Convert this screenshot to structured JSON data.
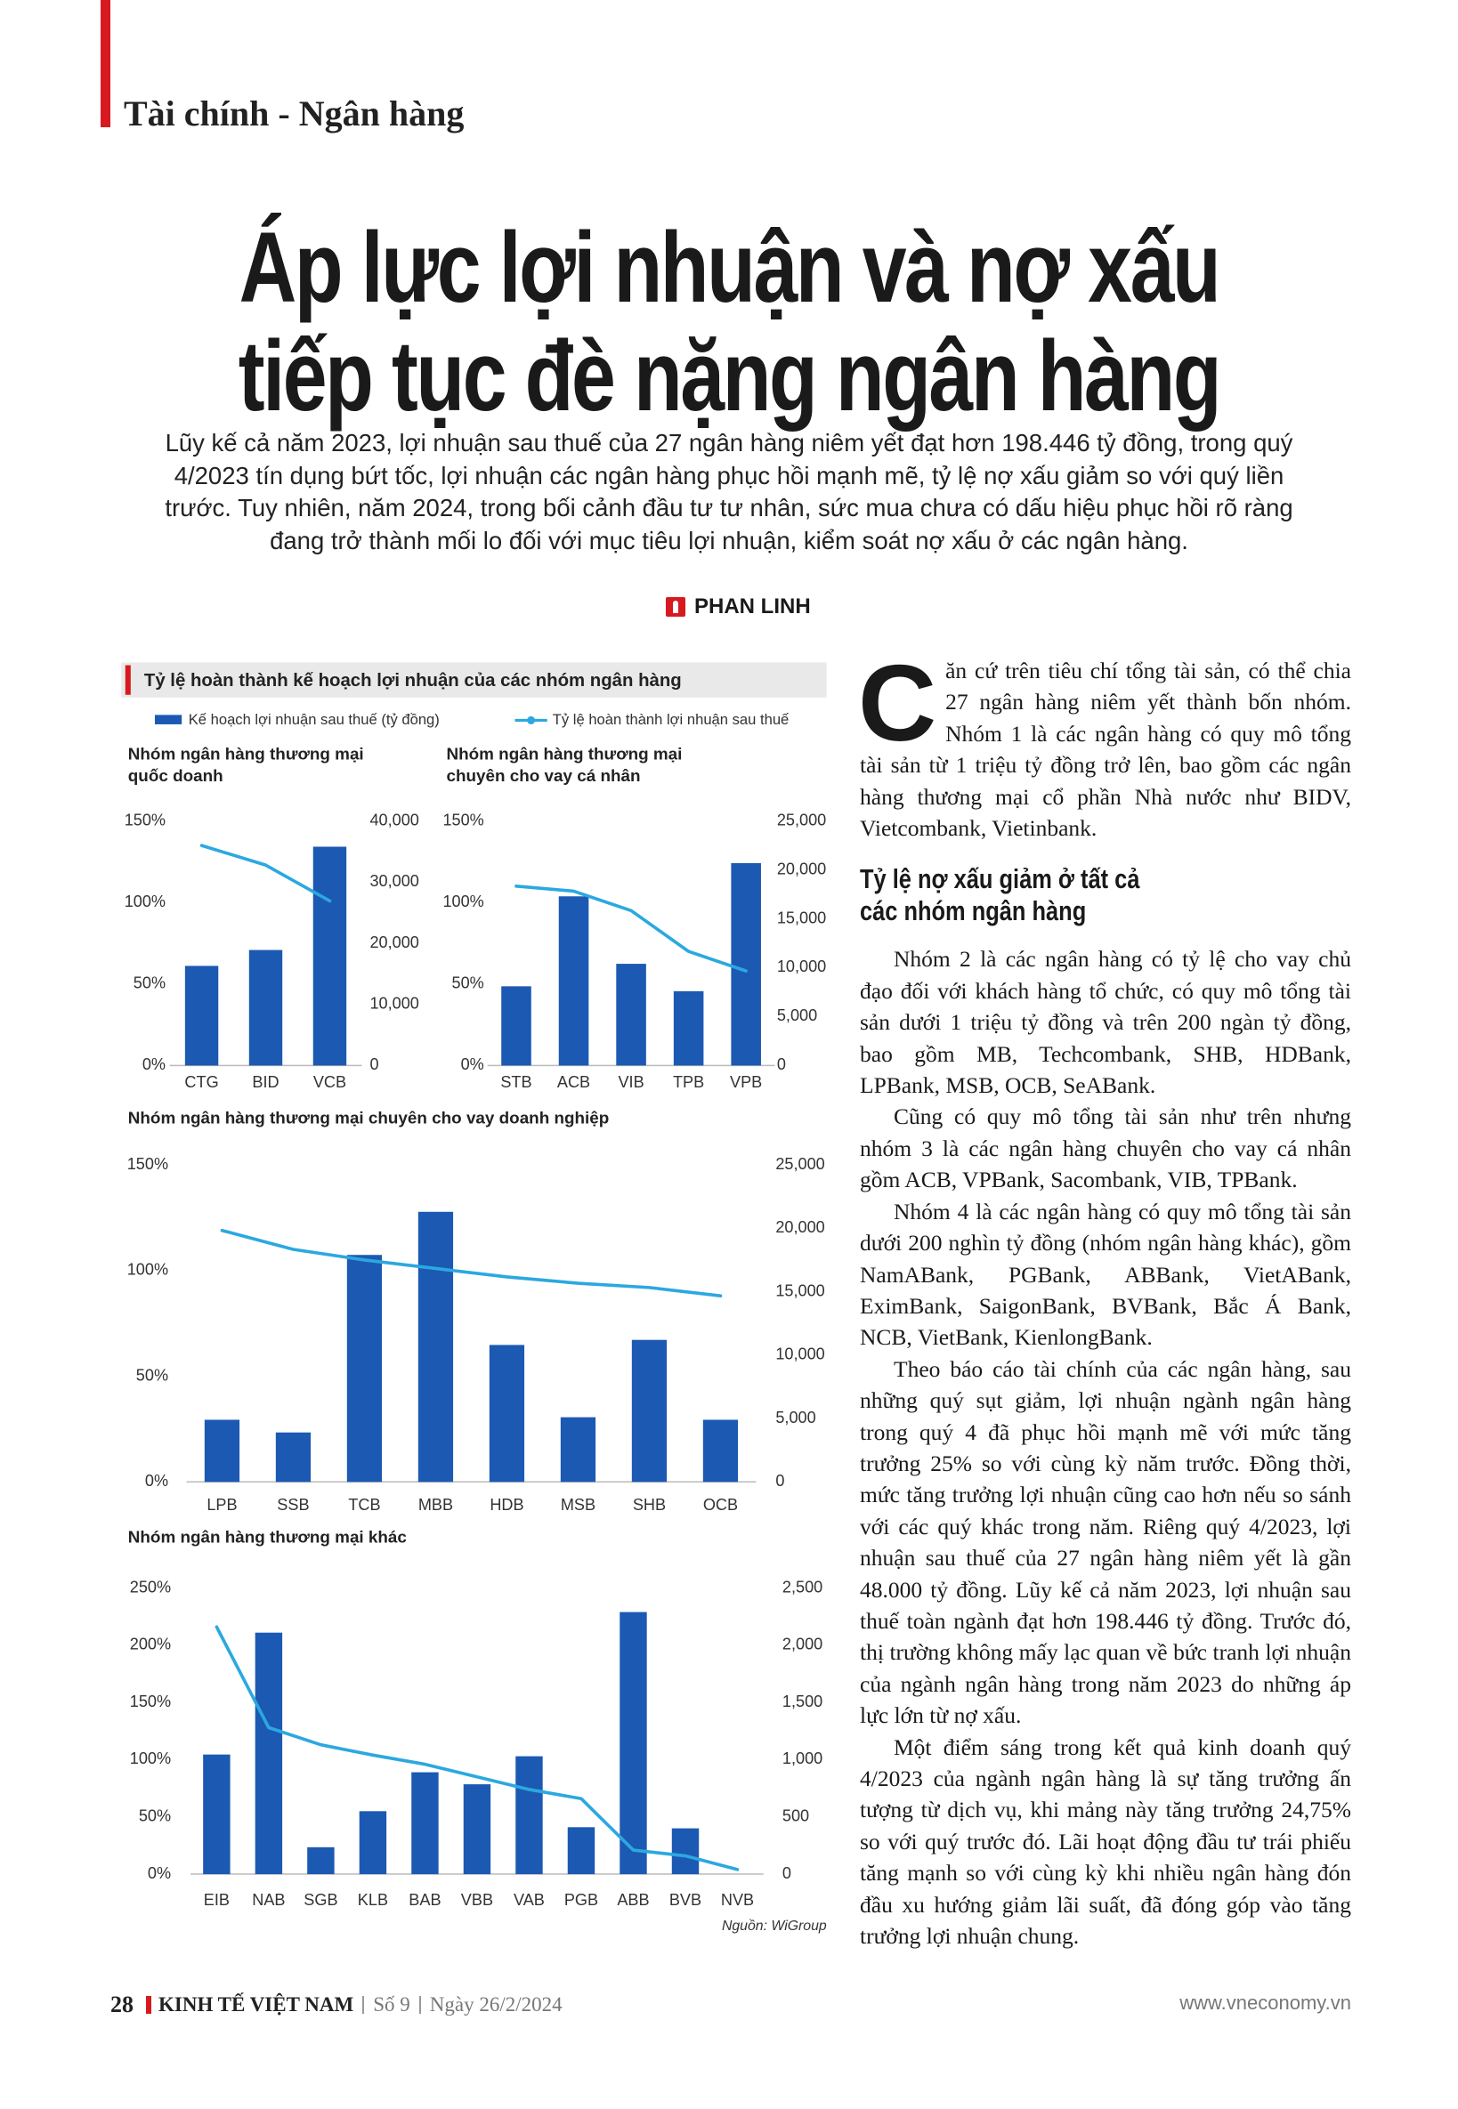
{
  "header": {
    "section": "Tài chính - Ngân hàng"
  },
  "title": [
    "Áp lực lợi nhuận và nợ xấu",
    "tiếp tục đè nặng ngân hàng"
  ],
  "lead": "Lũy kế cả năm 2023, lợi nhuận sau thuế của 27 ngân hàng niêm yết đạt hơn 198.446 tỷ đồng, trong quý 4/2023 tín dụng bứt tốc, lợi nhuận các ngân hàng phục hồi mạnh mẽ, tỷ lệ nợ xấu giảm so với quý liền trước. Tuy nhiên, năm 2024, trong bối cảnh đầu tư tư nhân, sức mua chưa có dấu hiệu phục hồi rõ ràng đang trở thành mối lo đối với mục tiêu lợi nhuận, kiểm soát nợ xấu ở các ngân hàng.",
  "byline": "PHAN LINH",
  "figure": {
    "title": "Tỷ lệ hoàn thành kế hoạch lợi nhuận của các nhóm ngân hàng",
    "legend": [
      {
        "name": "Kế hoạch lợi nhuận sau thuế (tỷ đồng)",
        "color": "#1c59b3"
      },
      {
        "name": "Tỷ lệ hoàn thành lợi nhuận sau thuế",
        "color": "#2ba8e0"
      }
    ],
    "source": "Nguồn: WiGroup",
    "charts": [
      {
        "type": "combo",
        "title": [
          "Nhóm ngân hàng thương mại",
          "quốc doanh"
        ],
        "categories": [
          "CTG",
          "BID",
          "VCB"
        ],
        "ylim": [
          0,
          150
        ],
        "yticks": [
          {
            "value": 0,
            "label": "0%"
          },
          {
            "value": 50,
            "label": "50%"
          },
          {
            "value": 100,
            "label": "100%"
          },
          {
            "value": 150,
            "label": "150%"
          }
        ],
        "y2lim": [
          0,
          40000
        ],
        "y2ticks": [
          0,
          {
            "value": 10000,
            "label": "10,000"
          },
          {
            "value": 20000,
            "label": "20,000"
          },
          {
            "value": 30000,
            "label": "30,000"
          },
          {
            "value": 40000,
            "label": "40,000"
          }
        ],
        "series": [
          {
            "axis": "y2",
            "values": [
              16300,
              18900,
              35800
            ]
          },
          {
            "values": [
              135,
              123,
              101
            ]
          }
        ]
      },
      {
        "type": "combo",
        "title": [
          "Nhóm ngân hàng thương mại",
          "chuyên cho vay cá nhân"
        ],
        "categories": [
          "STB",
          "ACB",
          "VIB",
          "TPB",
          "VPB"
        ],
        "ylim": [
          0,
          150
        ],
        "yticks": [
          {
            "value": 0,
            "label": "0%"
          },
          {
            "value": 50,
            "label": "50%"
          },
          {
            "value": 100,
            "label": "100%"
          },
          {
            "value": 150,
            "label": "150%"
          }
        ],
        "y2lim": [
          0,
          25000
        ],
        "y2ticks": [
          0,
          {
            "value": 5000,
            "label": "5,000"
          },
          {
            "value": 10000,
            "label": "10,000"
          },
          {
            "value": 15000,
            "label": "15,000"
          },
          {
            "value": 20000,
            "label": "20,000"
          },
          {
            "value": 25000,
            "label": "25,000"
          }
        ],
        "series": [
          {
            "axis": "y2",
            "values": [
              8100,
              17300,
              10400,
              7600,
              20700
            ]
          },
          {
            "values": [
              110,
              107,
              95,
              70,
              58
            ]
          }
        ]
      },
      {
        "type": "combo",
        "title": [
          "Nhóm ngân hàng thương mại chuyên cho vay doanh nghiệp"
        ],
        "categories": [
          "LPB",
          "SSB",
          "TCB",
          "MBB",
          "HDB",
          "MSB",
          "SHB",
          "OCB"
        ],
        "ylim": [
          0,
          150
        ],
        "yticks": [
          {
            "value": 0,
            "label": "0%"
          },
          {
            "value": 50,
            "label": "50%"
          },
          {
            "value": 100,
            "label": "100%"
          },
          {
            "value": 150,
            "label": "150%"
          }
        ],
        "y2lim": [
          0,
          25000
        ],
        "y2ticks": [
          0,
          {
            "value": 5000,
            "label": "5,000"
          },
          {
            "value": 10000,
            "label": "10,000"
          },
          {
            "value": 15000,
            "label": "15,000"
          },
          {
            "value": 20000,
            "label": "20,000"
          },
          {
            "value": 25000,
            "label": "25,000"
          }
        ],
        "series": [
          {
            "axis": "y2",
            "values": [
              4900,
              3900,
              17900,
              21300,
              10800,
              5100,
              11200,
              4900
            ]
          },
          {
            "values": [
              119,
              110,
              105,
              101,
              97,
              94,
              92,
              88
            ]
          }
        ]
      },
      {
        "type": "combo",
        "title": [
          "Nhóm ngân hàng thương mại khác"
        ],
        "categories": [
          "EIB",
          "NAB",
          "SGB",
          "KLB",
          "BAB",
          "VBB",
          "VAB",
          "PGB",
          "ABB",
          "BVB",
          "NVB"
        ],
        "ylim": [
          0,
          250
        ],
        "yticks": [
          {
            "value": 0,
            "label": "0%"
          },
          {
            "value": 50,
            "label": "50%"
          },
          {
            "value": 100,
            "label": "100%"
          },
          {
            "value": 150,
            "label": "150%"
          },
          {
            "value": 200,
            "label": "200%"
          },
          {
            "value": 250,
            "label": "250%"
          }
        ],
        "y2lim": [
          0,
          2500
        ],
        "y2ticks": [
          0,
          500,
          {
            "value": 1000,
            "label": "1,000"
          },
          {
            "value": 1500,
            "label": "1,500"
          },
          {
            "value": 2000,
            "label": "2,000"
          },
          {
            "value": 2500,
            "label": "2,500"
          }
        ],
        "series": [
          {
            "axis": "y2",
            "values": [
              1045,
              2110,
              235,
              550,
              890,
              785,
              1030,
              410,
              2290,
              400,
              null
            ]
          },
          {
            "values": [
              216,
              128,
              113,
              104,
              96,
              85,
              74,
              66,
              21,
              16,
              4
            ]
          }
        ]
      }
    ]
  },
  "article": {
    "dropcap": "C",
    "first": "ăn cứ trên tiêu chí tổng tài sản, có thể chia 27 ngân hàng niêm yết thành bốn nhóm. Nhóm 1 là các ngân hàng có quy mô tổng tài sản từ 1 triệu tỷ đồng trở lên, bao gồm các ngân hàng thương mại cổ phần Nhà nước như BIDV, Vietcombank, Vietinbank.",
    "subheading": [
      "Tỷ lệ nợ xấu giảm ở tất cả",
      "các nhóm ngân hàng"
    ],
    "paragraphs": [
      "Nhóm 2 là các ngân hàng có tỷ lệ cho vay chủ đạo đối với khách hàng tổ chức, có quy mô tổng tài sản dưới 1 triệu tỷ đồng và trên 200 ngàn tỷ đồng, bao gồm MB, Techcombank, SHB, HDBank, LPBank, MSB, OCB, SeABank.",
      "Cũng có quy mô tổng tài sản như trên nhưng nhóm 3 là các ngân hàng chuyên cho vay cá nhân gồm ACB, VPBank, Sacombank, VIB, TPBank.",
      "Nhóm 4 là các ngân hàng có quy mô tổng tài sản dưới 200 nghìn tỷ đồng (nhóm ngân hàng khác), gồm NamABank, PGBank, ABBank, VietABank, EximBank, SaigonBank, BVBank, Bắc Á Bank, NCB, VietBank, KienlongBank.",
      "Theo báo cáo tài chính của các ngân hàng, sau những quý sụt giảm, lợi nhuận ngành ngân hàng trong quý 4 đã phục hồi mạnh mẽ với mức tăng trưởng 25% so với cùng kỳ năm trước. Đồng thời, mức tăng trưởng lợi nhuận cũng cao hơn nếu so sánh với các quý khác trong năm. Riêng quý 4/2023, lợi nhuận sau thuế của 27 ngân hàng niêm yết là gần 48.000 tỷ đồng. Lũy kế cả năm 2023, lợi nhuận sau thuế toàn ngành đạt hơn 198.446 tỷ đồng. Trước đó, thị trường không mấy lạc quan về bức tranh lợi nhuận của ngành ngân hàng trong năm 2023 do những áp lực lớn từ nợ xấu.",
      "Một điểm sáng trong kết quả kinh doanh quý 4/2023 của ngành ngân hàng là sự tăng trưởng ấn tượng từ dịch vụ, khi mảng này tăng trưởng 24,75% so với quý trước đó. Lãi hoạt động đầu tư trái phiếu tăng mạnh so với cùng kỳ khi nhiều ngân hàng đón đầu xu hướng giảm lãi suất, đã đóng góp vào tăng trưởng lợi nhuận chung."
    ]
  },
  "footer": {
    "page": "28",
    "magazine": "KINH TẾ VIỆT NAM",
    "issue": "Số 9",
    "date": "Ngày 26/2/2024",
    "website": "www.vneconomy.vn"
  }
}
